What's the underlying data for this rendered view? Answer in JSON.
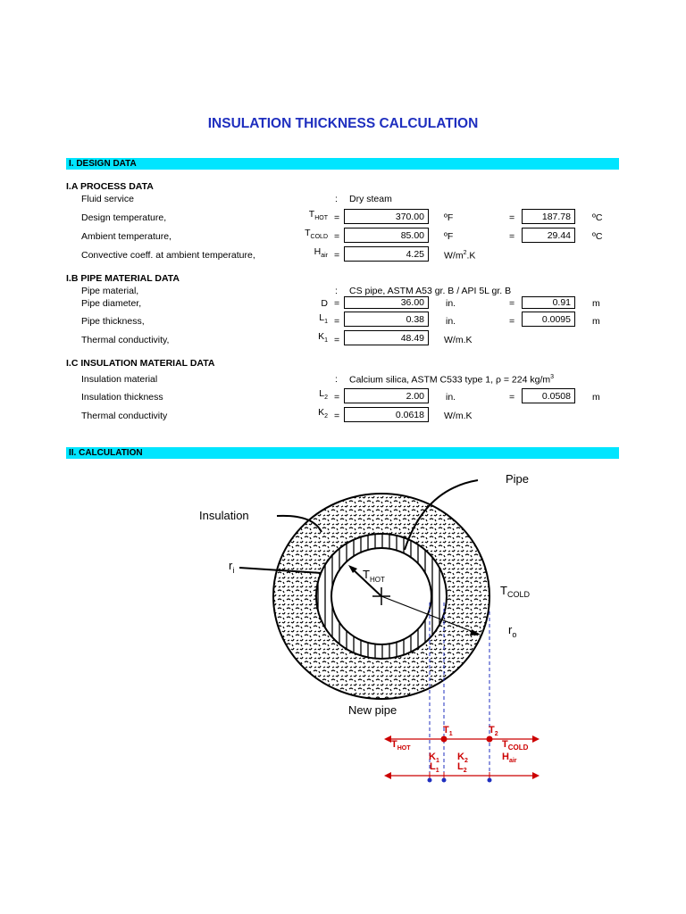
{
  "title": "INSULATION THICKNESS CALCULATION",
  "section1": {
    "heading": "I.   DESIGN DATA",
    "process": {
      "heading": "I.A PROCESS DATA",
      "fluid_label": "Fluid service",
      "fluid_value": "Dry steam",
      "design_temp": {
        "label": "Design temperature,",
        "sym": "T",
        "sub": "HOT",
        "value": "370.00",
        "unit": "ºF",
        "conv": "187.78",
        "conv_unit": "ºC"
      },
      "ambient_temp": {
        "label": "Ambient temperature,",
        "sym": "T",
        "sub": "COLD",
        "value": "85.00",
        "unit": "ºF",
        "conv": "29.44",
        "conv_unit": "ºC"
      },
      "conv_coeff": {
        "label": "Convective coeff. at ambient temperature,",
        "sym": "H",
        "sub": "air",
        "value": "4.25",
        "unit": "W/m",
        "unit_sup": "2",
        "unit_tail": ".K"
      }
    },
    "pipe": {
      "heading": "I.B PIPE MATERIAL DATA",
      "material_label": "Pipe material,",
      "material_value": "CS pipe, ASTM A53 gr. B / API 5L gr. B",
      "diameter": {
        "label": "Pipe diameter,",
        "sym": "D",
        "value": "36.00",
        "unit": "in.",
        "conv": "0.91",
        "conv_unit": "m"
      },
      "thickness": {
        "label": "Pipe thickness,",
        "sym": "L",
        "sub": "1",
        "value": "0.38",
        "unit": "in.",
        "conv": "0.0095",
        "conv_unit": "m"
      },
      "conductivity": {
        "label": "Thermal conductivity,",
        "sym": "K",
        "sub": "1",
        "value": "48.49",
        "unit": "W/m.K"
      }
    },
    "insulation": {
      "heading": "I.C INSULATION MATERIAL DATA",
      "material_label": "Insulation material",
      "material_value": "Calcium silica, ASTM C533 type 1,  ρ = 224 kg/m",
      "material_sup": "3",
      "thickness": {
        "label": "Insulation thickness",
        "sym": "L",
        "sub": "2",
        "value": "2.00",
        "unit": "in.",
        "conv": "0.0508",
        "conv_unit": "m"
      },
      "conductivity": {
        "label": "Thermal conductivity",
        "sym": "K",
        "sub": "2",
        "value": "0.0618",
        "unit": "W/m.K"
      }
    },
    "colon": ":",
    "equals": "="
  },
  "section2": {
    "heading": "II.  CALCULATION"
  },
  "diagram": {
    "pipe": "Pipe",
    "insulation": "Insulation",
    "ri": "r",
    "ri_sub": "i",
    "thot": "T",
    "thot_sub": "HOT",
    "tcold": "T",
    "tcold_sub": "COLD",
    "ro": "r",
    "ro_sub": "o",
    "new_pipe": "New pipe",
    "t1": "T",
    "t1_sub": "1",
    "t2": "T",
    "t2_sub": "2",
    "thot2": "T",
    "thot2_sub": "HOT",
    "tcold2": "T",
    "tcold2_sub": "COLD",
    "hair": "H",
    "hair_sub": "air",
    "k1": "K",
    "k1_sub": "1",
    "k2": "K",
    "k2_sub": "2",
    "l1": "L",
    "l1_sub": "1",
    "l2": "L",
    "l2_sub": "2"
  }
}
